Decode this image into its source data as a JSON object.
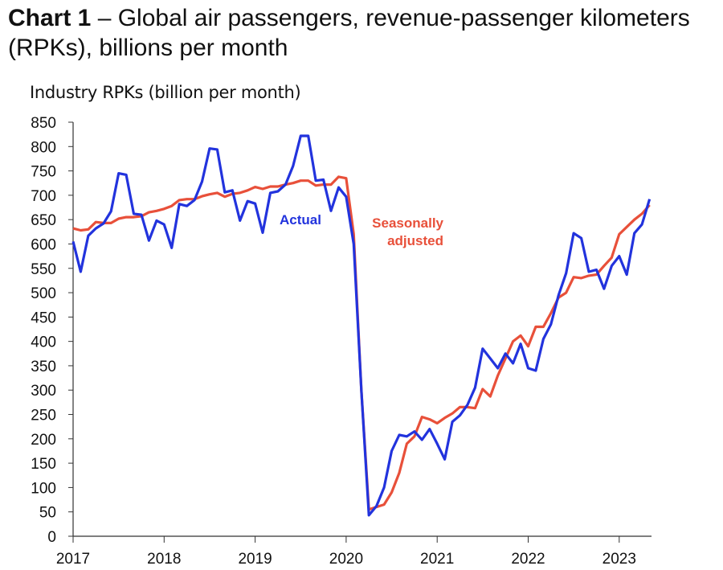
{
  "title": {
    "bold": "Chart 1",
    "rest": " – Global air passengers, revenue-passenger kilometers (RPKs), billions per month"
  },
  "chart_data": {
    "type": "line",
    "title": "Chart 1 – Global air passengers, revenue-passenger kilometers (RPKs), billions per month",
    "ylabel": "Industry RPKs (billion per month)",
    "xlabel": "",
    "ylim": [
      0,
      850
    ],
    "yticks": [
      0,
      50,
      100,
      150,
      200,
      250,
      300,
      350,
      400,
      450,
      500,
      550,
      600,
      650,
      700,
      750,
      800,
      850
    ],
    "xticks": [
      "2017",
      "2018",
      "2019",
      "2020",
      "2021",
      "2022",
      "2023"
    ],
    "x_start": "2017-01",
    "x_end": "2023-05",
    "frequency": "monthly",
    "grid": false,
    "series": [
      {
        "name": "Actual",
        "color": "#2233dd",
        "values": [
          605,
          543,
          617,
          632,
          642,
          667,
          745,
          742,
          662,
          660,
          607,
          648,
          640,
          592,
          682,
          678,
          690,
          728,
          796,
          794,
          706,
          710,
          648,
          688,
          683,
          623,
          705,
          708,
          722,
          760,
          822,
          822,
          730,
          732,
          668,
          716,
          697,
          600,
          300,
          43,
          62,
          100,
          175,
          208,
          205,
          215,
          198,
          220,
          190,
          158,
          235,
          248,
          270,
          305,
          385,
          365,
          345,
          375,
          355,
          395,
          345,
          340,
          405,
          435,
          495,
          540,
          622,
          612,
          543,
          547,
          508,
          555,
          575,
          537,
          622,
          640,
          692
        ]
      },
      {
        "name": "Seasonally adjusted",
        "color": "#e8503a",
        "values": [
          632,
          628,
          630,
          645,
          643,
          643,
          652,
          655,
          655,
          657,
          665,
          668,
          672,
          678,
          690,
          692,
          692,
          698,
          702,
          705,
          697,
          703,
          705,
          710,
          717,
          713,
          718,
          718,
          722,
          725,
          730,
          730,
          720,
          722,
          722,
          738,
          735,
          620,
          300,
          55,
          60,
          65,
          90,
          130,
          190,
          205,
          245,
          240,
          232,
          243,
          252,
          265,
          265,
          263,
          302,
          287,
          330,
          365,
          400,
          412,
          390,
          430,
          430,
          458,
          490,
          500,
          532,
          530,
          535,
          537,
          555,
          572,
          620,
          635,
          650,
          662,
          680
        ]
      }
    ]
  }
}
